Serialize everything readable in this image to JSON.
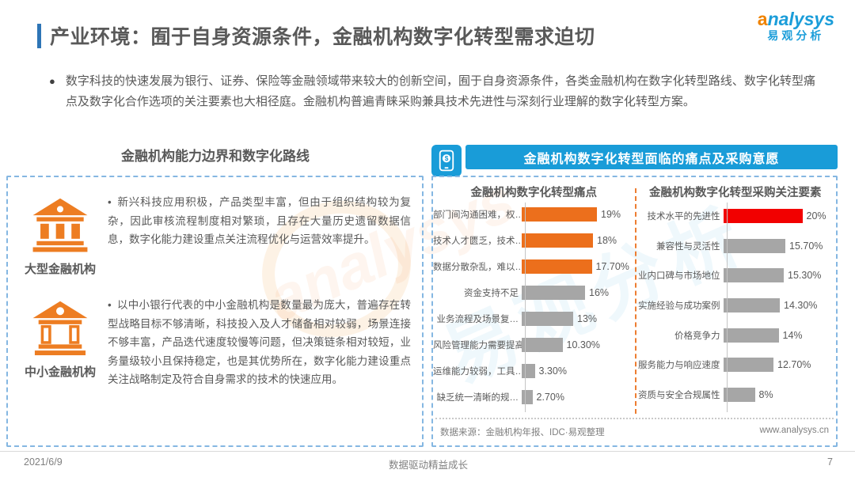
{
  "page": {
    "title": "产业环境：囿于自身资源条件，金融机构数字化转型需求迫切",
    "intro_bullet": "●",
    "intro": "数字科技的快速发展为银行、证券、保险等金融领域带来较大的创新空间，囿于自身资源条件，各类金融机构在数字化转型路线、数字化转型痛点及数字化合作选项的关注要素也大相径庭。金融机构普遍青睐采购兼具技术先进性与深刻行业理解的数字化转型方案。"
  },
  "logo": {
    "brand_en": "nalysys",
    "brand_swirl": "a",
    "brand_cn": "易观分析",
    "watermark_cn": "易观分析",
    "watermark_en": "analysys"
  },
  "left_panel": {
    "heading": "金融机构能力边界和数字化路线",
    "rows": [
      {
        "icon": "bank-large-icon",
        "bullet": "•",
        "label": "大型金融机构",
        "text": "新兴科技应用积极，产品类型丰富，但由于组织结构较为复杂，因此审核流程制度相对繁琐，且存在大量历史遗留数据信息，数字化能力建设重点关注流程优化与运营效率提升。"
      },
      {
        "icon": "bank-small-icon",
        "bullet": "•",
        "label": "中小金融机构",
        "text": "以中小银行代表的中小金融机构是数量最为庞大，普遍存在转型战略目标不够清晰，科技投入及人才储备相对较弱，场景连接不够丰富，产品迭代速度较慢等问题，但决策链条相对较短，业务量级较小且保持稳定，也是其优势所在，数字化能力建设重点关注战略制定及符合自身需求的技术的快速应用。"
      }
    ]
  },
  "right_panel": {
    "header": "金融机构数字化转型面临的痛点及采购意愿",
    "header_icon": "mobile-payment-icon",
    "source": "数据来源：金融机构年报、IDC·易观整理",
    "website": "www.analysys.cn"
  },
  "chart_data": [
    {
      "type": "bar",
      "orientation": "horizontal",
      "title": "金融机构数字化转型痛点",
      "categories": [
        "部门间沟通困难，权…",
        "技术人才匮乏，技术…",
        "数据分散杂乱，难以…",
        "资金支持不足",
        "业务流程及场景复…",
        "风险管理能力需要提高",
        "运维能力较弱，工具…",
        "缺乏统一清晰的规…"
      ],
      "values": [
        19,
        18,
        17.7,
        16,
        13,
        10.3,
        3.3,
        2.7
      ],
      "labels": [
        "19%",
        "18%",
        "17.70%",
        "16%",
        "13%",
        "10.30%",
        "3.30%",
        "2.70%"
      ],
      "bar_colors": [
        "#EC6F1C",
        "#EC6F1C",
        "#EC6F1C",
        "#A6A6A6",
        "#A6A6A6",
        "#A6A6A6",
        "#A6A6A6",
        "#A6A6A6"
      ],
      "xlim": [
        0,
        20
      ],
      "grid": false,
      "legend": false
    },
    {
      "type": "bar",
      "orientation": "horizontal",
      "title": "金融机构数字化转型采购关注要素",
      "categories": [
        "技术水平的先进性",
        "兼容性与灵活性",
        "业内口碑与市场地位",
        "实施经验与成功案例",
        "价格竞争力",
        "服务能力与响应速度",
        "资质与安全合规属性"
      ],
      "values": [
        20,
        15.7,
        15.3,
        14.3,
        14,
        12.7,
        8
      ],
      "labels": [
        "20%",
        "15.70%",
        "15.30%",
        "14.30%",
        "14%",
        "12.70%",
        "8%"
      ],
      "bar_colors": [
        "#F20000",
        "#A6A6A6",
        "#A6A6A6",
        "#A6A6A6",
        "#A6A6A6",
        "#A6A6A6",
        "#A6A6A6"
      ],
      "xlim": [
        0,
        20
      ],
      "grid": false,
      "legend": false
    }
  ],
  "footer": {
    "date": "2021/6/9",
    "slogan": "数据驱动精益成长",
    "page_number": "7"
  },
  "colors": {
    "accent_blue": "#199CD8",
    "title_bar_blue": "#2E75B6",
    "logo_blue": "#1B9DD9",
    "orange": "#EC6F1C",
    "red": "#F20000",
    "gray_bar": "#A6A6A6",
    "text_dark": "#595959",
    "border_dash_blue": "#85B7E2",
    "divider_orange": "#ED7D31"
  }
}
